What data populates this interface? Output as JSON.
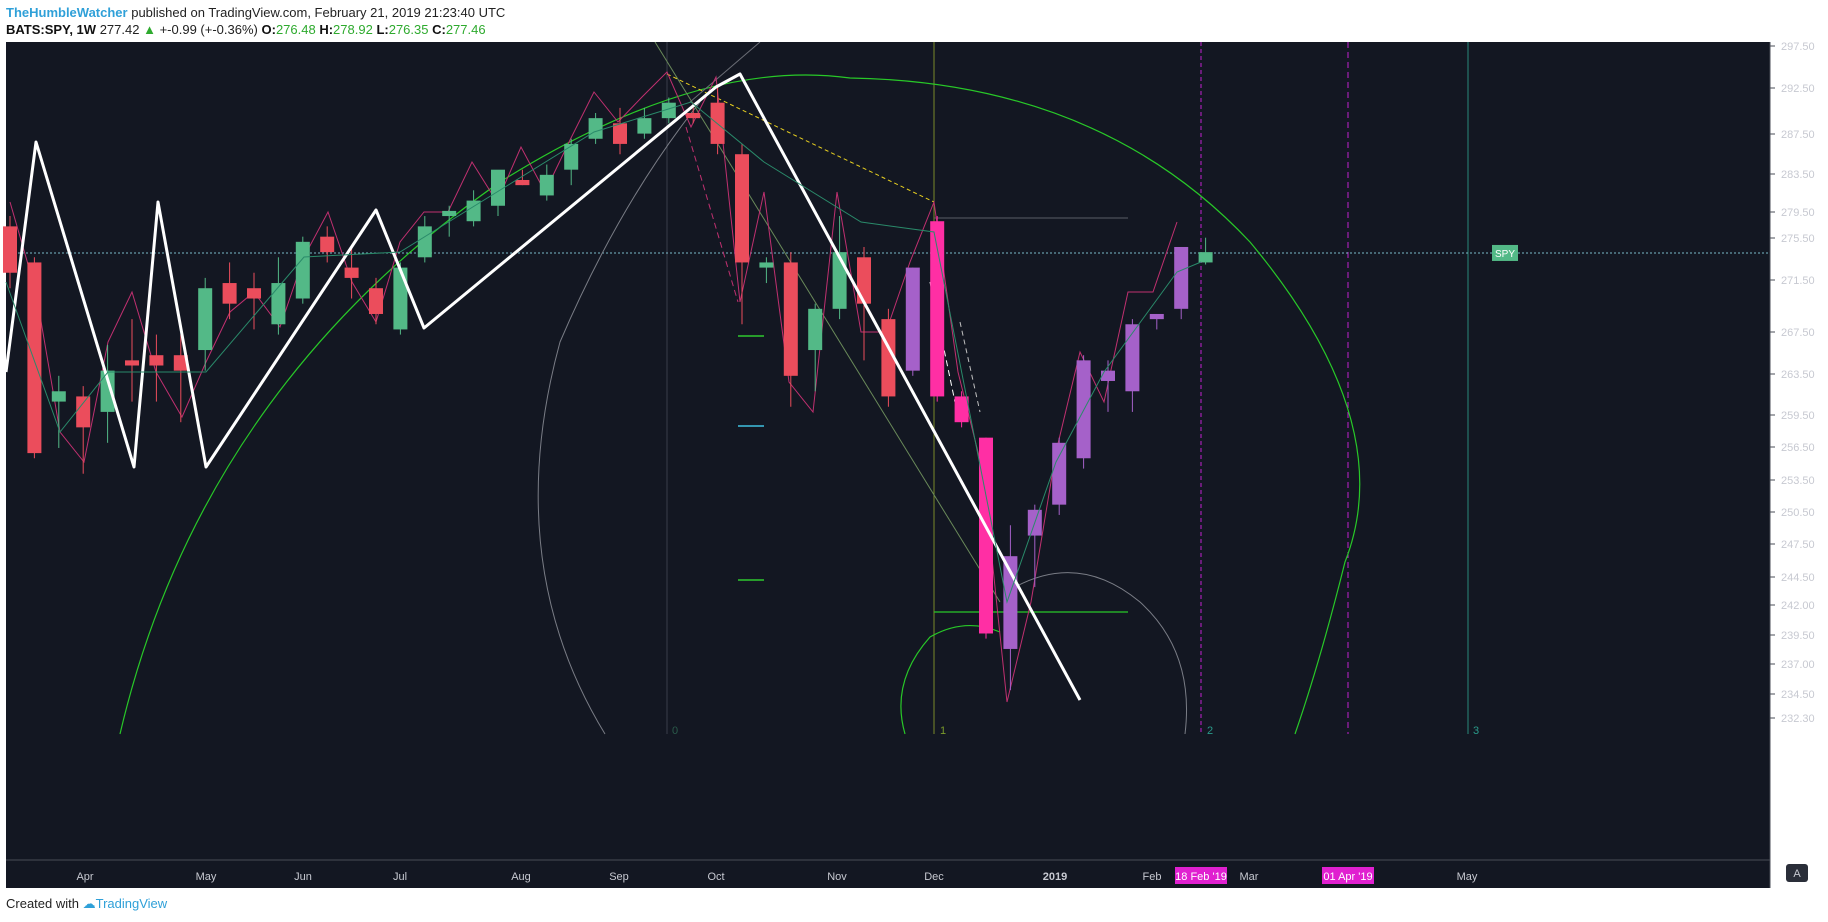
{
  "header": {
    "author": "TheHumbleWatcher",
    "published": "published on TradingView.com, February 21, 2019 21:23:40 UTC",
    "symbol": "BATS:SPY, 1W",
    "last": "277.42",
    "change": "+-0.99 (+-0.36%)",
    "o_label": "O:",
    "o_value": "276.48",
    "h_label": "H:",
    "h_value": "278.92",
    "l_label": "L:",
    "l_value": "276.35",
    "c_label": "C:",
    "c_value": "277.46"
  },
  "footer": {
    "created": "Created with",
    "brand": "TradingView"
  },
  "colors": {
    "background": "#131722",
    "up": "#53b987",
    "down": "#eb4d5c",
    "magenta": "#ff2fa4",
    "purple": "#a561c9",
    "arc": "#28c828",
    "zigzag": "#ffffff",
    "price_line": "#53b987",
    "date_badge": "#e020d0"
  },
  "chart_data": {
    "type": "candlestick",
    "symbol": "SPY",
    "interval": "1W",
    "y_axis": {
      "ticks": [
        "297.50",
        "292.50",
        "287.50",
        "283.50",
        "279.50",
        "275.50",
        "271.50",
        "267.50",
        "263.50",
        "259.50",
        "256.50",
        "253.50",
        "250.50",
        "247.50",
        "244.50",
        "242.00",
        "239.50",
        "237.00",
        "234.50",
        "232.30"
      ],
      "range": [
        231,
        298
      ]
    },
    "x_axis": {
      "labels": [
        "Apr",
        "May",
        "Jun",
        "Jul",
        "Aug",
        "Sep",
        "Oct",
        "Nov",
        "Dec",
        "2019",
        "Feb",
        "Mar",
        "May"
      ],
      "bold_labels": [
        "2019"
      ]
    },
    "date_badges": [
      "18 Feb '19",
      "01 Apr '19"
    ],
    "last_price_label": "SPY",
    "last_price": 277.42,
    "vertical_markers": [
      "0",
      "1",
      "2",
      "3"
    ],
    "candles": [
      {
        "o": 280.0,
        "h": 281.0,
        "l": 274.0,
        "c": 275.5,
        "color": "down"
      },
      {
        "o": 276.5,
        "h": 277.0,
        "l": 257.5,
        "c": 258.0,
        "color": "down"
      },
      {
        "o": 263.0,
        "h": 265.5,
        "l": 258.5,
        "c": 264.0,
        "color": "up"
      },
      {
        "o": 263.5,
        "h": 264.5,
        "l": 256.0,
        "c": 260.5,
        "color": "down"
      },
      {
        "o": 262.0,
        "h": 268.5,
        "l": 259.0,
        "c": 266.0,
        "color": "up"
      },
      {
        "o": 267.0,
        "h": 271.0,
        "l": 263.0,
        "c": 266.5,
        "color": "down"
      },
      {
        "o": 267.5,
        "h": 269.5,
        "l": 263.0,
        "c": 266.5,
        "color": "down"
      },
      {
        "o": 267.5,
        "h": 269.5,
        "l": 261.0,
        "c": 266.0,
        "color": "down"
      },
      {
        "o": 268.0,
        "h": 275.0,
        "l": 266.0,
        "c": 274.0,
        "color": "up"
      },
      {
        "o": 274.5,
        "h": 276.5,
        "l": 271.0,
        "c": 272.5,
        "color": "down"
      },
      {
        "o": 274.0,
        "h": 275.5,
        "l": 270.0,
        "c": 273.0,
        "color": "down"
      },
      {
        "o": 270.5,
        "h": 277.0,
        "l": 269.5,
        "c": 274.5,
        "color": "up"
      },
      {
        "o": 273.0,
        "h": 279.0,
        "l": 272.5,
        "c": 278.5,
        "color": "up"
      },
      {
        "o": 279.0,
        "h": 280.0,
        "l": 276.5,
        "c": 277.5,
        "color": "down"
      },
      {
        "o": 276.0,
        "h": 278.0,
        "l": 273.0,
        "c": 275.0,
        "color": "down"
      },
      {
        "o": 274.0,
        "h": 275.0,
        "l": 270.5,
        "c": 271.5,
        "color": "down"
      },
      {
        "o": 270.0,
        "h": 276.5,
        "l": 269.5,
        "c": 276.0,
        "color": "up"
      },
      {
        "o": 277.0,
        "h": 281.0,
        "l": 276.5,
        "c": 280.0,
        "color": "up"
      },
      {
        "o": 281.0,
        "h": 282.0,
        "l": 279.0,
        "c": 281.5,
        "color": "up"
      },
      {
        "o": 280.5,
        "h": 283.5,
        "l": 280.0,
        "c": 282.5,
        "color": "up"
      },
      {
        "o": 282.0,
        "h": 285.0,
        "l": 281.0,
        "c": 285.5,
        "color": "up"
      },
      {
        "o": 284.5,
        "h": 285.5,
        "l": 284.0,
        "c": 284.0,
        "color": "down"
      },
      {
        "o": 283.0,
        "h": 286.0,
        "l": 282.5,
        "c": 285.0,
        "color": "up"
      },
      {
        "o": 285.5,
        "h": 288.5,
        "l": 284.0,
        "c": 288.0,
        "color": "up"
      },
      {
        "o": 288.5,
        "h": 291.0,
        "l": 288.0,
        "c": 290.5,
        "color": "up"
      },
      {
        "o": 290.0,
        "h": 291.5,
        "l": 287.0,
        "c": 288.0,
        "color": "down"
      },
      {
        "o": 289.0,
        "h": 291.5,
        "l": 288.5,
        "c": 290.5,
        "color": "up"
      },
      {
        "o": 290.5,
        "h": 292.5,
        "l": 290.0,
        "c": 292.0,
        "color": "up"
      },
      {
        "o": 291.0,
        "h": 292.0,
        "l": 290.0,
        "c": 290.5,
        "color": "down"
      },
      {
        "o": 292.0,
        "h": 293.5,
        "l": 287.0,
        "c": 288.0,
        "color": "down"
      },
      {
        "o": 287.0,
        "h": 288.0,
        "l": 270.5,
        "c": 276.5,
        "color": "down"
      },
      {
        "o": 276.5,
        "h": 277.0,
        "l": 274.5,
        "c": 276.0,
        "color": "up"
      },
      {
        "o": 276.5,
        "h": 277.5,
        "l": 262.5,
        "c": 265.5,
        "color": "down"
      },
      {
        "o": 268.0,
        "h": 272.5,
        "l": 264.0,
        "c": 272.0,
        "color": "up"
      },
      {
        "o": 272.0,
        "h": 281.0,
        "l": 271.0,
        "c": 277.5,
        "color": "up"
      },
      {
        "o": 277.0,
        "h": 278.0,
        "l": 267.0,
        "c": 272.5,
        "color": "down"
      },
      {
        "o": 271.0,
        "h": 272.0,
        "l": 262.5,
        "c": 263.5,
        "color": "down"
      },
      {
        "o": 266.0,
        "h": 276.0,
        "l": 265.5,
        "c": 276.0,
        "color": "purple"
      },
      {
        "o": 280.5,
        "h": 281.0,
        "l": 263.0,
        "c": 263.5,
        "color": "magenta"
      },
      {
        "o": 263.5,
        "h": 264.0,
        "l": 260.5,
        "c": 261.0,
        "color": "magenta"
      },
      {
        "o": 259.5,
        "h": 259.5,
        "l": 240.0,
        "c": 240.5,
        "color": "magenta"
      },
      {
        "o": 239.0,
        "h": 251.0,
        "l": 235.0,
        "c": 248.0,
        "color": "purple"
      },
      {
        "o": 250.0,
        "h": 253.0,
        "l": 245.0,
        "c": 252.5,
        "color": "purple"
      },
      {
        "o": 253.0,
        "h": 259.5,
        "l": 252.0,
        "c": 259.0,
        "color": "purple"
      },
      {
        "o": 257.5,
        "h": 267.5,
        "l": 256.5,
        "c": 267.0,
        "color": "purple"
      },
      {
        "o": 265.0,
        "h": 267.0,
        "l": 262.0,
        "c": 266.0,
        "color": "purple"
      },
      {
        "o": 264.0,
        "h": 271.0,
        "l": 262.0,
        "c": 270.5,
        "color": "purple"
      },
      {
        "o": 271.0,
        "h": 271.5,
        "l": 270.0,
        "c": 271.5,
        "color": "purple"
      },
      {
        "o": 272.0,
        "h": 278.0,
        "l": 271.0,
        "c": 278.0,
        "color": "purple"
      },
      {
        "o": 276.5,
        "h": 278.9,
        "l": 276.3,
        "c": 277.5,
        "color": "up"
      }
    ]
  }
}
